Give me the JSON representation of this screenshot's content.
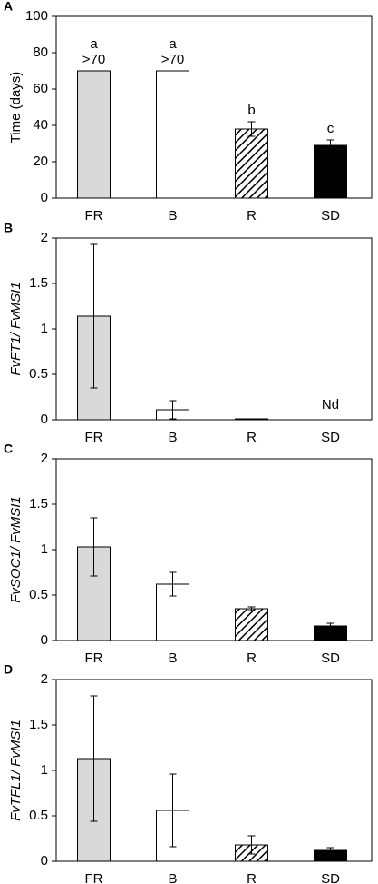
{
  "chart_data": [
    {
      "type": "bar",
      "panel": "A",
      "ylabel": "Time (days)",
      "categories": [
        "FR",
        "B",
        "R",
        "SD"
      ],
      "values": [
        70,
        70,
        38,
        29
      ],
      "errors": [
        null,
        null,
        4,
        3
      ],
      "letters": [
        "a",
        "a",
        "b",
        "c"
      ],
      "value_labels": [
        ">70",
        ">70",
        null,
        null
      ],
      "colors": [
        "#d9d9d9",
        "#ffffff",
        "#ffffff",
        "#000000"
      ],
      "hatch": [
        false,
        false,
        true,
        false
      ],
      "ylim": [
        0,
        100
      ],
      "yticks": [
        0,
        20,
        40,
        60,
        80,
        100
      ]
    },
    {
      "type": "bar",
      "panel": "B",
      "ylabel": "FvFT1/ FvMSI1",
      "categories": [
        "FR",
        "B",
        "R",
        "SD"
      ],
      "values": [
        1.14,
        0.11,
        0.01,
        null
      ],
      "errors": [
        0.79,
        0.1,
        null,
        null
      ],
      "value_labels": [
        null,
        null,
        null,
        "Nd"
      ],
      "colors": [
        "#d9d9d9",
        "#ffffff",
        "#ffffff",
        "#000000"
      ],
      "hatch": [
        false,
        false,
        true,
        false
      ],
      "ylim": [
        0,
        2
      ],
      "yticks": [
        0,
        0.5,
        1,
        1.5,
        2
      ]
    },
    {
      "type": "bar",
      "panel": "C",
      "ylabel": "FvSOC1/ FvMSI1",
      "categories": [
        "FR",
        "B",
        "R",
        "SD"
      ],
      "values": [
        1.03,
        0.62,
        0.35,
        0.16
      ],
      "errors": [
        0.32,
        0.13,
        0.02,
        0.03
      ],
      "colors": [
        "#d9d9d9",
        "#ffffff",
        "#ffffff",
        "#000000"
      ],
      "hatch": [
        false,
        false,
        true,
        false
      ],
      "ylim": [
        0,
        2
      ],
      "yticks": [
        0,
        0.5,
        1,
        1.5,
        2
      ]
    },
    {
      "type": "bar",
      "panel": "D",
      "ylabel": "FvTFL1/ FvMSI1",
      "categories": [
        "FR",
        "B",
        "R",
        "SD"
      ],
      "values": [
        1.13,
        0.56,
        0.18,
        0.12
      ],
      "errors": [
        0.69,
        0.4,
        0.1,
        0.03
      ],
      "colors": [
        "#d9d9d9",
        "#ffffff",
        "#ffffff",
        "#000000"
      ],
      "hatch": [
        false,
        false,
        true,
        false
      ],
      "ylim": [
        0,
        2
      ],
      "yticks": [
        0,
        0.5,
        1,
        1.5,
        2
      ]
    }
  ]
}
